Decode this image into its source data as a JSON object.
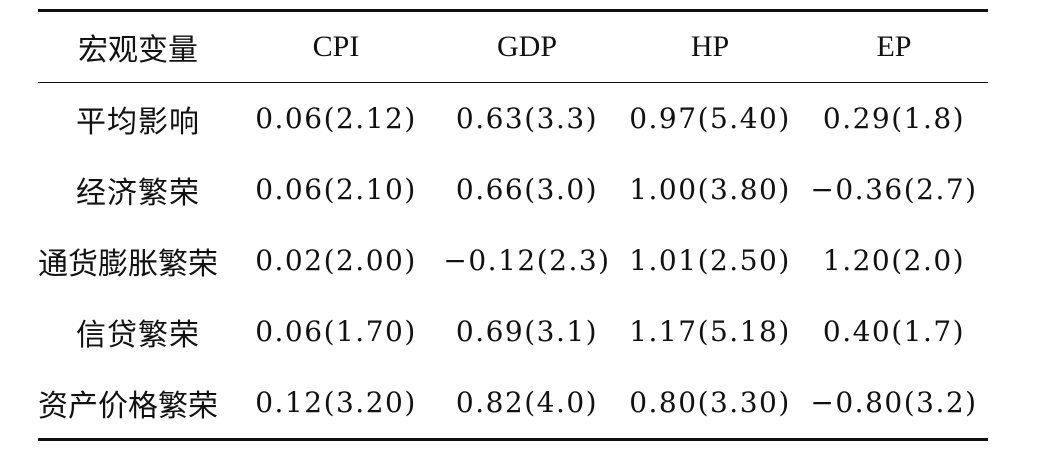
{
  "table": {
    "headers": [
      "宏观变量",
      "CPI",
      "GDP",
      "HP",
      "EP"
    ],
    "rows": [
      [
        "平均影响",
        "0.06(2.12)",
        "0.63(3.3)",
        "0.97(5.40)",
        "0.29(1.8)"
      ],
      [
        "经济繁荣",
        "0.06(2.10)",
        "0.66(3.0)",
        "1.00(3.80)",
        "−0.36(2.7)"
      ],
      [
        "通货膨胀繁荣",
        "0.02(2.00)",
        "−0.12(2.3)",
        "1.01(2.50)",
        "1.20(2.0)"
      ],
      [
        "信贷繁荣",
        "0.06(1.70)",
        "0.69(3.1)",
        "1.17(5.18)",
        "0.40(1.7)"
      ],
      [
        "资产价格繁荣",
        "0.12(3.20)",
        "0.82(4.0)",
        "0.80(3.30)",
        "−0.80(3.2)"
      ]
    ]
  }
}
